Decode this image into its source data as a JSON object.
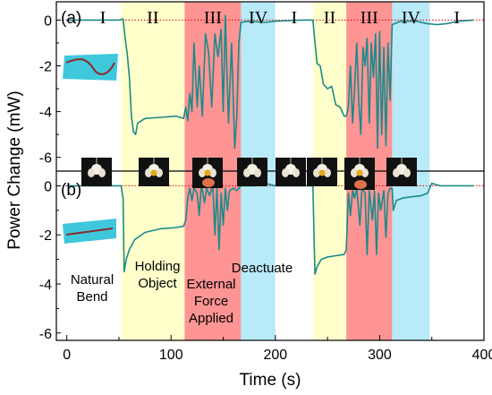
{
  "chart_data": [
    {
      "type": "line",
      "panel_label": "(a)",
      "ylabel": "Power Change (mW)",
      "xlim": [
        -10,
        400
      ],
      "ylim": [
        -6.6,
        0.8
      ],
      "yticks": [
        0,
        -2,
        -4,
        -6
      ],
      "series_color": "#1b8a8a",
      "phases": [
        {
          "label": "I",
          "start": -10,
          "end": 52
        },
        {
          "label": "II",
          "start": 52,
          "end": 113
        },
        {
          "label": "III",
          "start": 113,
          "end": 167
        },
        {
          "label": "IV",
          "start": 167,
          "end": 200
        },
        {
          "label": "I",
          "start": 200,
          "end": 236
        },
        {
          "label": "II",
          "start": 236,
          "end": 268
        },
        {
          "label": "III",
          "start": 268,
          "end": 312
        },
        {
          "label": "IV",
          "start": 312,
          "end": 348
        },
        {
          "label": "I",
          "start": 348,
          "end": 400
        }
      ],
      "series": [
        {
          "points": [
            [
              0,
              0
            ],
            [
              50,
              0
            ],
            [
              54,
              0.05
            ],
            [
              56,
              -0.8
            ],
            [
              58,
              -1.5
            ],
            [
              60,
              -2.5
            ],
            [
              62,
              -4.2
            ],
            [
              64,
              -4.9
            ],
            [
              66,
              -5.0
            ],
            [
              68,
              -4.5
            ],
            [
              75,
              -4.3
            ],
            [
              90,
              -4.25
            ],
            [
              105,
              -4.2
            ],
            [
              112,
              -4.3
            ],
            [
              114,
              -3.8
            ],
            [
              116,
              -4.4
            ],
            [
              118,
              -3.2
            ],
            [
              120,
              -4.0
            ],
            [
              122,
              -1.0
            ],
            [
              125,
              -3.8
            ],
            [
              127,
              -2.0
            ],
            [
              130,
              -4.2
            ],
            [
              133,
              -0.6
            ],
            [
              136,
              -1.4
            ],
            [
              139,
              -3.8
            ],
            [
              142,
              -0.6
            ],
            [
              145,
              -1.6
            ],
            [
              148,
              -0.4
            ],
            [
              150,
              -4.0
            ],
            [
              152,
              0.2
            ],
            [
              155,
              -4.5
            ],
            [
              158,
              -1.0
            ],
            [
              161,
              -5.6
            ],
            [
              163,
              -4.2
            ],
            [
              165,
              -1.0
            ],
            [
              167,
              -0.1
            ],
            [
              175,
              -0.05
            ],
            [
              190,
              -0.1
            ],
            [
              200,
              -0.05
            ],
            [
              225,
              0
            ],
            [
              236,
              0
            ],
            [
              238,
              -1.0
            ],
            [
              240,
              -1.9
            ],
            [
              243,
              -2.0
            ],
            [
              246,
              -2.8
            ],
            [
              250,
              -3.0
            ],
            [
              254,
              -2.9
            ],
            [
              258,
              -3.7
            ],
            [
              262,
              -3.8
            ],
            [
              266,
              -4.2
            ],
            [
              268,
              -4.2
            ],
            [
              270,
              -3.8
            ],
            [
              272,
              -2.0
            ],
            [
              274,
              -4.5
            ],
            [
              276,
              -3.0
            ],
            [
              278,
              -1.0
            ],
            [
              280,
              -3.6
            ],
            [
              282,
              -5.0
            ],
            [
              284,
              -1.2
            ],
            [
              286,
              -2.0
            ],
            [
              288,
              -0.8
            ],
            [
              290,
              -4.5
            ],
            [
              292,
              -1.0
            ],
            [
              294,
              -2.5
            ],
            [
              296,
              -0.6
            ],
            [
              298,
              -5.6
            ],
            [
              300,
              -0.5
            ],
            [
              302,
              -5.0
            ],
            [
              304,
              -1.2
            ],
            [
              306,
              -5.5
            ],
            [
              308,
              -1.0
            ],
            [
              310,
              -3.5
            ],
            [
              312,
              -0.2
            ],
            [
              320,
              -0.05
            ],
            [
              335,
              -0.05
            ],
            [
              345,
              -0.15
            ],
            [
              355,
              -0.2
            ],
            [
              365,
              -0.15
            ],
            [
              375,
              -0.05
            ],
            [
              390,
              0
            ]
          ]
        }
      ]
    },
    {
      "type": "line",
      "panel_label": "(b)",
      "xlabel": "Time (s)",
      "xlim": [
        -10,
        400
      ],
      "ylim": [
        -6.3,
        0.6
      ],
      "yticks": [
        0,
        -2,
        -4,
        -6
      ],
      "xticks": [
        0,
        100,
        200,
        300,
        400
      ],
      "series_color": "#1b8a8a",
      "phases": [
        {
          "start": -10,
          "end": 52
        },
        {
          "start": 52,
          "end": 113
        },
        {
          "start": 113,
          "end": 167
        },
        {
          "start": 167,
          "end": 200
        },
        {
          "start": 200,
          "end": 236
        },
        {
          "start": 236,
          "end": 268
        },
        {
          "start": 268,
          "end": 312
        },
        {
          "start": 312,
          "end": 348
        },
        {
          "start": 348,
          "end": 400
        }
      ],
      "annotations": [
        {
          "text": [
            "Natural",
            "Bend"
          ]
        },
        {
          "text": [
            "Holding",
            "Object"
          ]
        },
        {
          "text": [
            "External",
            "Force",
            "Applied"
          ]
        },
        {
          "text": [
            "Deactuate"
          ]
        }
      ],
      "series": [
        {
          "points": [
            [
              0,
              0
            ],
            [
              52,
              0
            ],
            [
              54,
              -0.5
            ],
            [
              55,
              -3.5
            ],
            [
              57,
              -3.0
            ],
            [
              60,
              -2.6
            ],
            [
              65,
              -2.2
            ],
            [
              75,
              -1.9
            ],
            [
              90,
              -1.75
            ],
            [
              105,
              -1.7
            ],
            [
              112,
              -1.65
            ],
            [
              114,
              -1.4
            ],
            [
              116,
              -0.5
            ],
            [
              118,
              -0.1
            ],
            [
              120,
              -0.6
            ],
            [
              122,
              -0.1
            ],
            [
              125,
              -0.3
            ],
            [
              127,
              -1.2
            ],
            [
              129,
              0.05
            ],
            [
              132,
              -0.7
            ],
            [
              134,
              -0.1
            ],
            [
              137,
              -0.4
            ],
            [
              140,
              0.05
            ],
            [
              142,
              -2.0
            ],
            [
              144,
              -0.1
            ],
            [
              146,
              -2.6
            ],
            [
              148,
              -0.3
            ],
            [
              150,
              -1.6
            ],
            [
              152,
              -0.1
            ],
            [
              154,
              -1.0
            ],
            [
              156,
              -0.2
            ],
            [
              160,
              -0.1
            ],
            [
              163,
              -0.2
            ],
            [
              165,
              -0.1
            ],
            [
              167,
              0
            ],
            [
              180,
              0
            ],
            [
              190,
              0.1
            ],
            [
              200,
              0
            ],
            [
              236,
              0
            ],
            [
              237,
              -2.0
            ],
            [
              238,
              -3.6
            ],
            [
              240,
              -3.3
            ],
            [
              244,
              -3.0
            ],
            [
              250,
              -2.9
            ],
            [
              258,
              -2.85
            ],
            [
              266,
              -2.8
            ],
            [
              268,
              -2.6
            ],
            [
              270,
              -0.3
            ],
            [
              272,
              -1.2
            ],
            [
              274,
              -0.2
            ],
            [
              276,
              -0.5
            ],
            [
              278,
              -0.1
            ],
            [
              281,
              -1.6
            ],
            [
              283,
              -0.1
            ],
            [
              286,
              -0.3
            ],
            [
              288,
              -2.8
            ],
            [
              290,
              -0.2
            ],
            [
              293,
              -1.4
            ],
            [
              295,
              -0.2
            ],
            [
              297,
              -2.8
            ],
            [
              299,
              -0.3
            ],
            [
              301,
              -1.0
            ],
            [
              304,
              -0.2
            ],
            [
              306,
              -2.1
            ],
            [
              308,
              -0.3
            ],
            [
              310,
              -0.1
            ],
            [
              312,
              -0.1
            ],
            [
              313,
              -1.0
            ],
            [
              316,
              -0.6
            ],
            [
              322,
              -0.5
            ],
            [
              330,
              -0.45
            ],
            [
              340,
              -0.4
            ],
            [
              346,
              -0.3
            ],
            [
              350,
              0.1
            ],
            [
              358,
              0
            ],
            [
              375,
              0
            ],
            [
              390,
              0
            ]
          ]
        }
      ]
    }
  ],
  "colors": {
    "phase_I": "#ffffff",
    "phase_II": "#ffffcc",
    "phase_III": "#ff9494",
    "phase_IV": "#b8eaf8",
    "zero_line": "#dd0000"
  }
}
